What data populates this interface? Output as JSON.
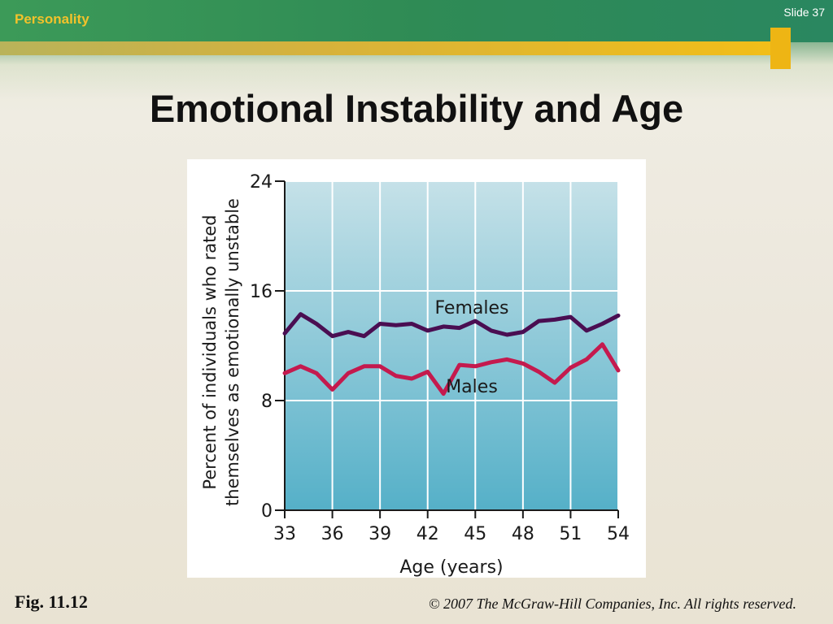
{
  "header": {
    "section": "Personality",
    "slide_number": "Slide 37",
    "title": "Emotional Instability and Age"
  },
  "footer": {
    "figure_label": "Fig. 11.12",
    "copyright": "© 2007 The McGraw-Hill Companies, Inc. All rights reserved."
  },
  "chart_data": {
    "type": "line",
    "title": "",
    "xlabel": "Age (years)",
    "ylabel_lines": [
      "Percent of individuals who rated",
      "themselves as emotionally unstable"
    ],
    "xlim": [
      33,
      54
    ],
    "ylim": [
      0,
      24
    ],
    "x_ticks": [
      33,
      36,
      39,
      42,
      45,
      48,
      51,
      54
    ],
    "y_ticks": [
      0,
      8,
      16,
      24
    ],
    "grid": true,
    "x": [
      33,
      34,
      35,
      36,
      37,
      38,
      39,
      40,
      41,
      42,
      43,
      44,
      45,
      46,
      47,
      48,
      49,
      50,
      51,
      52,
      53,
      54
    ],
    "series": [
      {
        "name": "Females",
        "color": "#4a0e52",
        "values": [
          12.9,
          14.3,
          13.6,
          12.7,
          13.0,
          12.7,
          13.6,
          13.5,
          13.6,
          13.1,
          13.4,
          13.3,
          13.8,
          13.1,
          12.8,
          13.0,
          13.8,
          13.9,
          14.1,
          13.1,
          13.6,
          14.2
        ]
      },
      {
        "name": "Males",
        "color": "#c41a4e",
        "values": [
          10.0,
          10.5,
          10.0,
          8.8,
          10.0,
          10.5,
          10.5,
          9.8,
          9.6,
          10.1,
          8.5,
          10.6,
          10.5,
          10.8,
          11.0,
          10.7,
          10.1,
          9.3,
          10.4,
          11.0,
          12.1,
          10.2
        ]
      }
    ]
  }
}
